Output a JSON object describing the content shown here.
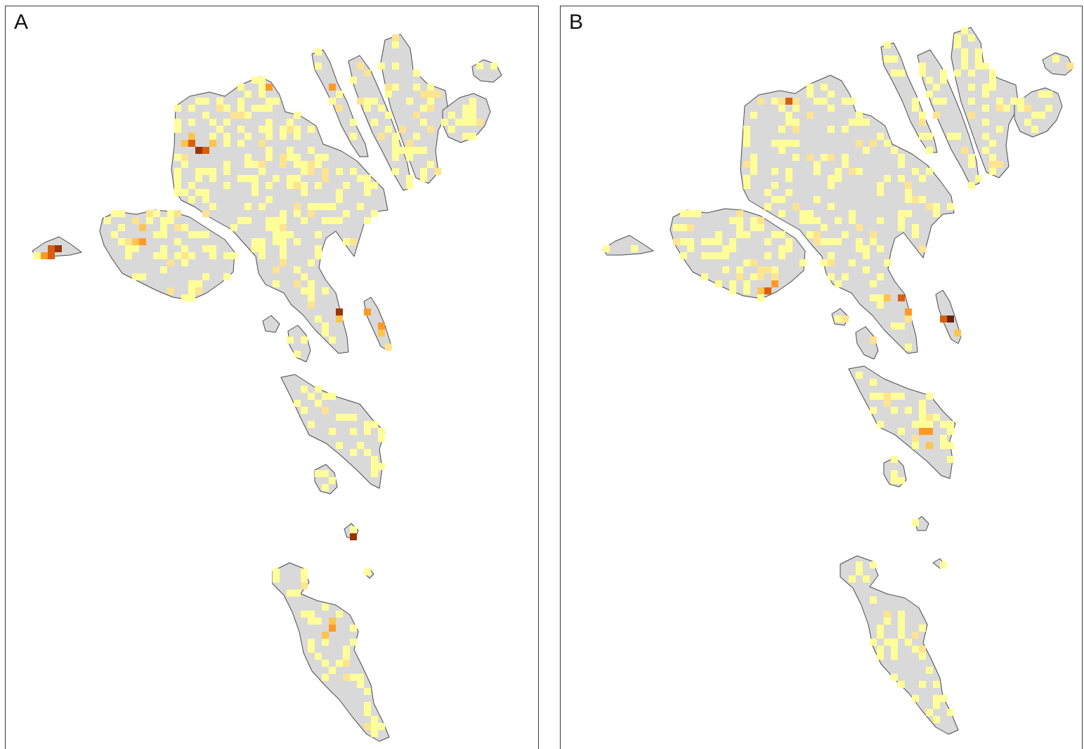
{
  "panels": {
    "a": {
      "label": "A"
    },
    "b": {
      "label": "B"
    }
  },
  "colors": {
    "land": "#d9d9d9",
    "coastline": "#4a4a4a",
    "frame": "#3a3a3a",
    "density_scale": [
      "#ffff99",
      "#fee391",
      "#fec44f",
      "#fe9929",
      "#d95f0e",
      "#993404",
      "#662506"
    ]
  }
}
